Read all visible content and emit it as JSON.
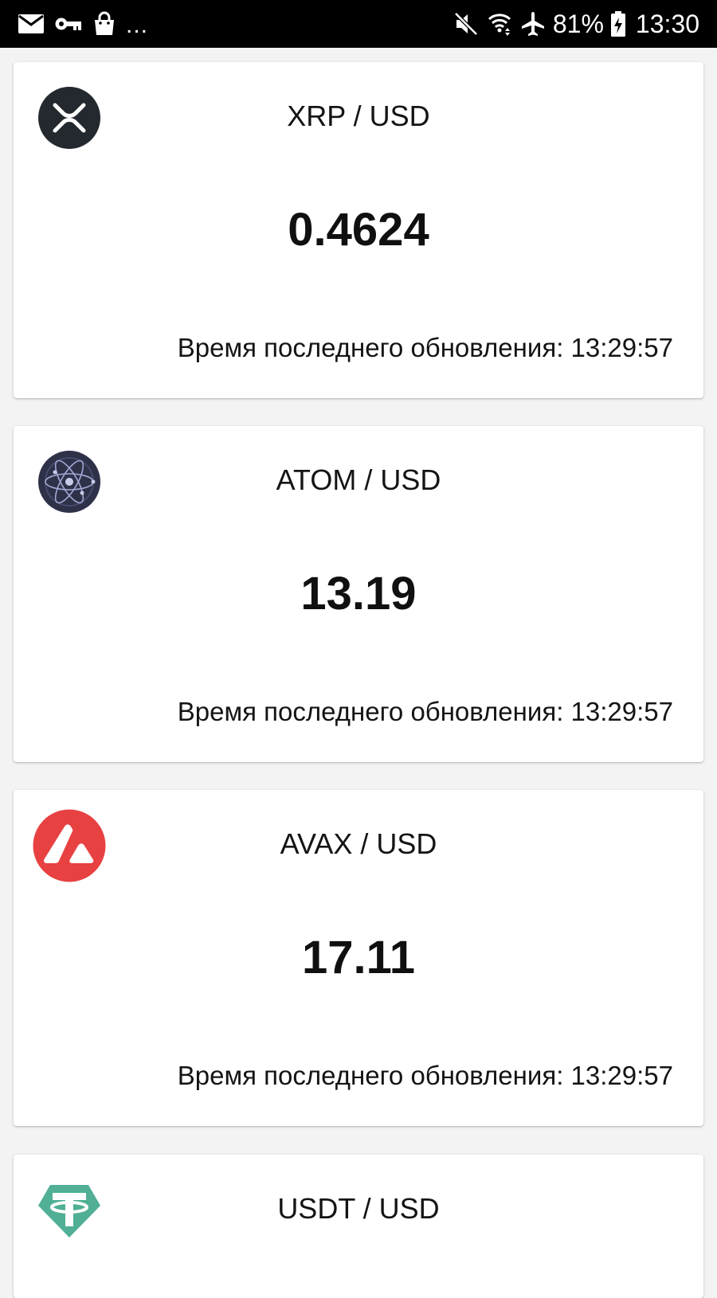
{
  "status_bar": {
    "left_icons": [
      "mail-icon",
      "vpn-key-icon",
      "shopping-bag-icon"
    ],
    "more_indicator": "...",
    "right_icons": [
      "mute-icon",
      "wifi-icon",
      "airplane-mode-icon",
      "battery-charging-icon"
    ],
    "battery": "81%",
    "time": "13:30"
  },
  "cards": [
    {
      "icon": "xrp-icon",
      "icon_color": "#23292f",
      "pair": "XRP / USD",
      "price": "0.4624",
      "updated_label": "Время последнего обновления:",
      "updated_time": "13:29:57"
    },
    {
      "icon": "atom-icon",
      "icon_color": "#2e3148",
      "pair": "ATOM / USD",
      "price": "13.19",
      "updated_label": "Время последнего обновления:",
      "updated_time": "13:29:57"
    },
    {
      "icon": "avax-icon",
      "icon_color": "#e84142",
      "pair": "AVAX / USD",
      "price": "17.11",
      "updated_label": "Время последнего обновления:",
      "updated_time": "13:29:57"
    },
    {
      "icon": "usdt-icon",
      "icon_color": "#50af95",
      "pair": "USDT / USD",
      "price": "",
      "updated_label": "",
      "updated_time": ""
    }
  ]
}
